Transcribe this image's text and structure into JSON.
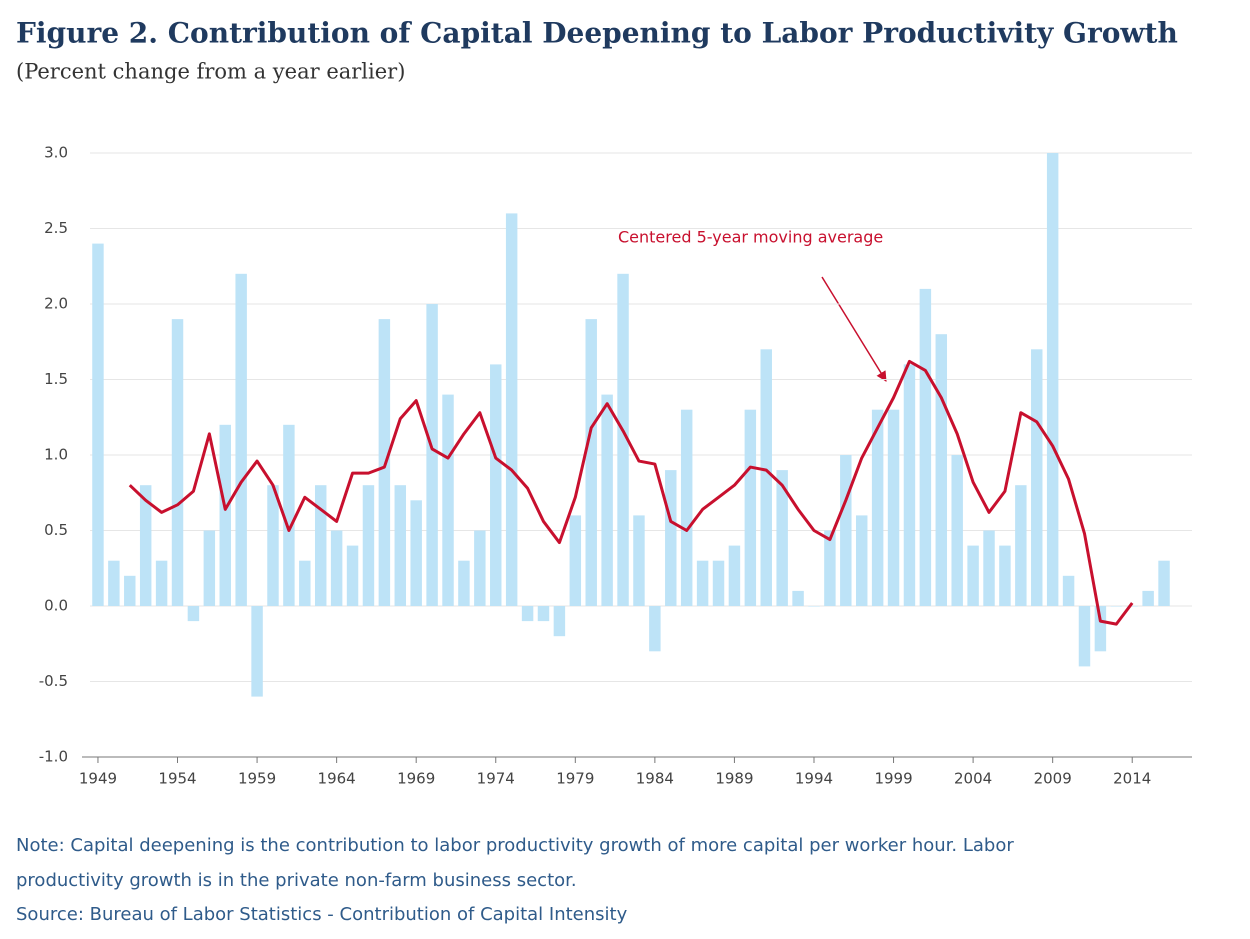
{
  "chart_data": {
    "type": "bar+line",
    "title": "Figure 2. Contribution of Capital Deepening to Labor Productivity Growth",
    "subtitle": "(Percent change from a year earlier)",
    "annotation": "Centered 5-year moving average",
    "note": "Note: Capital deepening is the contribution to labor productivity growth of more capital per worker hour. Labor",
    "note2": "productivity growth is in the private non-farm business sector.",
    "source": "Source: Bureau of Labor Statistics - Contribution of Capital Intensity",
    "x": [
      1949,
      1950,
      1951,
      1952,
      1953,
      1954,
      1955,
      1956,
      1957,
      1958,
      1959,
      1960,
      1961,
      1962,
      1963,
      1964,
      1965,
      1966,
      1967,
      1968,
      1969,
      1970,
      1971,
      1972,
      1973,
      1974,
      1975,
      1976,
      1977,
      1978,
      1979,
      1980,
      1981,
      1982,
      1983,
      1984,
      1985,
      1986,
      1987,
      1988,
      1989,
      1990,
      1991,
      1992,
      1993,
      1994,
      1995,
      1996,
      1997,
      1998,
      1999,
      2000,
      2001,
      2002,
      2003,
      2004,
      2005,
      2006,
      2007,
      2008,
      2009,
      2010,
      2011,
      2012,
      2013,
      2014,
      2015,
      2016
    ],
    "series": [
      {
        "color": "#bde3f7",
        "values": [
          2.4,
          0.3,
          0.2,
          0.8,
          0.3,
          1.9,
          -0.1,
          0.5,
          1.2,
          2.2,
          -0.6,
          0.8,
          1.2,
          0.3,
          0.8,
          0.5,
          0.4,
          0.8,
          1.9,
          0.8,
          0.7,
          2.0,
          1.4,
          0.3,
          0.5,
          1.6,
          2.6,
          -0.1,
          -0.1,
          -0.2,
          0.6,
          1.9,
          1.4,
          2.2,
          0.6,
          -0.3,
          0.9,
          1.3,
          0.3,
          0.3,
          0.4,
          1.3,
          1.7,
          0.9,
          0.1,
          0.0,
          0.5,
          1.0,
          0.6,
          1.3,
          1.3,
          1.6,
          2.1,
          1.8,
          1.0,
          0.4,
          0.5,
          0.4,
          0.8,
          1.7,
          3.0,
          0.2,
          -0.4,
          -0.3,
          0.0,
          0.0,
          0.1,
          0.3
        ]
      },
      {
        "type": "line",
        "color": "#c8102e",
        "values": [
          null,
          null,
          0.8,
          0.7,
          0.62,
          0.67,
          0.76,
          1.14,
          0.64,
          0.82,
          0.96,
          0.8,
          0.5,
          0.72,
          0.64,
          0.56,
          0.88,
          0.88,
          0.92,
          1.24,
          1.36,
          1.04,
          0.98,
          1.14,
          1.28,
          0.98,
          0.9,
          0.78,
          0.56,
          0.42,
          0.72,
          1.18,
          1.34,
          1.16,
          0.96,
          0.94,
          0.56,
          0.5,
          0.64,
          0.72,
          0.8,
          0.92,
          0.9,
          0.8,
          0.64,
          0.5,
          0.44,
          0.7,
          0.98,
          1.18,
          1.38,
          1.62,
          1.56,
          1.38,
          1.14,
          0.82,
          0.62,
          0.76,
          1.28,
          1.22,
          1.06,
          0.84,
          0.48,
          -0.1,
          -0.12,
          0.02,
          null,
          null
        ]
      }
    ],
    "xlim": [
      1948.5,
      2016.5
    ],
    "xticks": [
      1949,
      1954,
      1959,
      1964,
      1969,
      1974,
      1979,
      1984,
      1989,
      1994,
      1999,
      2004,
      2009,
      2014
    ],
    "ylim": [
      -1,
      3
    ],
    "yticks": [
      {
        "value": -1,
        "label": "-1.0"
      },
      -0.5,
      {
        "value": 0,
        "label": "0.0"
      },
      0.5,
      {
        "value": 1,
        "label": "1.0"
      },
      1.5,
      {
        "value": 2,
        "label": "2.0"
      },
      2.5,
      {
        "value": 3,
        "label": "3.0"
      }
    ],
    "grid": true
  }
}
